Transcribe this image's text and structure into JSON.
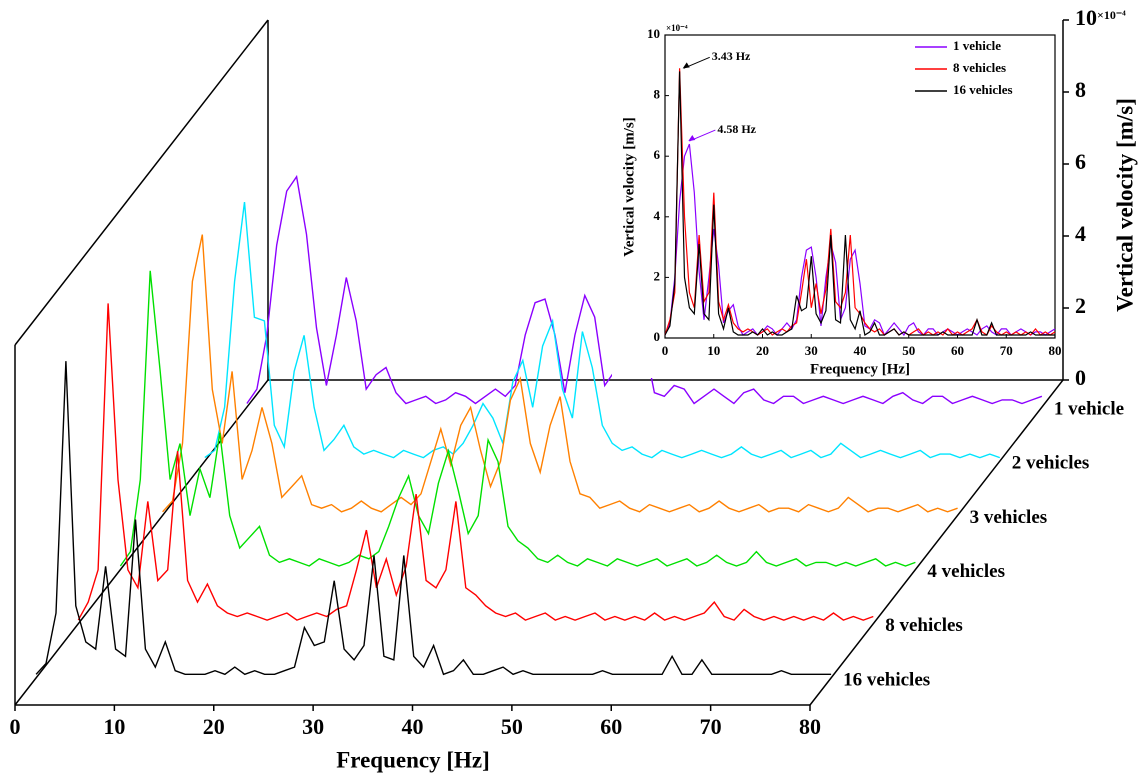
{
  "chart_data": [
    {
      "type": "waterfall",
      "xlabel": "Frequency [Hz]",
      "zlabel": "Vertical velocity [m/s]",
      "z_multiplier": "×10⁻⁴",
      "xlim": [
        0,
        80
      ],
      "xticks": [
        0,
        10,
        20,
        30,
        40,
        50,
        60,
        70,
        80
      ],
      "zlim": [
        0,
        10
      ],
      "zticks": [
        0,
        2,
        4,
        6,
        8,
        10
      ],
      "x": [
        0,
        1,
        2,
        3,
        4,
        5,
        6,
        7,
        8,
        9,
        10,
        11,
        12,
        13,
        14,
        15,
        16,
        17,
        18,
        19,
        20,
        21,
        22,
        23,
        24,
        25,
        26,
        27,
        28,
        29,
        30,
        31,
        32,
        33,
        34,
        35,
        36,
        37,
        38,
        39,
        40,
        41,
        42,
        43,
        44,
        45,
        46,
        47,
        48,
        49,
        50,
        51,
        52,
        53,
        54,
        55,
        56,
        57,
        58,
        59,
        60,
        61,
        62,
        63,
        64,
        65,
        66,
        67,
        68,
        69,
        70,
        71,
        72,
        73,
        74,
        75,
        76,
        77,
        78,
        79,
        80
      ],
      "series": [
        {
          "name": "1 vehicle",
          "color": "#8b00ff",
          "values": [
            0.1,
            0.5,
            2.0,
            4.5,
            6.0,
            6.4,
            4.8,
            2.2,
            0.6,
            2.0,
            3.6,
            2.4,
            0.5,
            0.9,
            1.1,
            0.4,
            0.1,
            0.2,
            0.3,
            0.1,
            0.2,
            0.4,
            0.3,
            0.1,
            0.3,
            0.5,
            0.3,
            0.6,
            2.0,
            2.9,
            3.0,
            2.0,
            0.4,
            2.0,
            3.1,
            2.5,
            0.6,
            1.0,
            2.6,
            2.9,
            1.8,
            0.4,
            0.3,
            0.6,
            0.5,
            0.1,
            0.3,
            0.5,
            0.3,
            0.1,
            0.4,
            0.5,
            0.2,
            0.1,
            0.3,
            0.3,
            0.1,
            0.2,
            0.3,
            0.2,
            0.1,
            0.2,
            0.3,
            0.2,
            0.1,
            0.3,
            0.4,
            0.2,
            0.1,
            0.3,
            0.3,
            0.1,
            0.2,
            0.3,
            0.2,
            0.1,
            0.2,
            0.2,
            0.1,
            0.2,
            0.3
          ]
        },
        {
          "name": "2 vehicles",
          "color": "#00e5ff",
          "values": [
            0.1,
            0.3,
            1.5,
            5.0,
            7.2,
            4.0,
            3.9,
            1.0,
            0.4,
            2.5,
            3.5,
            1.5,
            0.3,
            0.6,
            1.0,
            0.4,
            0.2,
            0.3,
            0.2,
            0.1,
            0.3,
            0.2,
            0.1,
            0.3,
            0.4,
            0.2,
            0.5,
            1.0,
            1.6,
            1.2,
            0.5,
            2.2,
            2.8,
            1.5,
            3.2,
            3.9,
            2.0,
            1.2,
            3.6,
            2.6,
            1.0,
            0.5,
            0.3,
            0.4,
            0.2,
            0.1,
            0.3,
            0.2,
            0.1,
            0.2,
            0.3,
            0.2,
            0.1,
            0.2,
            0.4,
            0.2,
            0.1,
            0.2,
            0.3,
            0.1,
            0.2,
            0.3,
            0.1,
            0.2,
            0.5,
            0.3,
            0.1,
            0.2,
            0.3,
            0.2,
            0.1,
            0.2,
            0.3,
            0.1,
            0.2,
            0.2,
            0.1,
            0.2,
            0.1,
            0.2,
            0.1
          ]
        },
        {
          "name": "3 vehicles",
          "color": "#ff8000",
          "values": [
            0.1,
            0.4,
            2.0,
            6.5,
            7.8,
            3.5,
            2.0,
            4.0,
            1.0,
            1.8,
            3.0,
            2.0,
            0.5,
            0.8,
            1.1,
            0.3,
            0.2,
            0.3,
            0.1,
            0.2,
            0.4,
            0.2,
            0.1,
            0.3,
            0.5,
            0.3,
            0.6,
            1.5,
            2.4,
            1.4,
            2.5,
            3.0,
            1.8,
            0.8,
            1.5,
            3.2,
            3.8,
            2.0,
            1.2,
            2.5,
            3.3,
            1.5,
            0.6,
            0.5,
            0.2,
            0.3,
            0.4,
            0.2,
            0.1,
            0.3,
            0.2,
            0.1,
            0.2,
            0.3,
            0.1,
            0.2,
            0.4,
            0.2,
            0.1,
            0.2,
            0.3,
            0.1,
            0.2,
            0.2,
            0.1,
            0.3,
            0.2,
            0.1,
            0.2,
            0.5,
            0.3,
            0.1,
            0.2,
            0.2,
            0.1,
            0.2,
            0.3,
            0.1,
            0.2,
            0.1,
            0.2
          ]
        },
        {
          "name": "4 vehicles",
          "color": "#00e000",
          "values": [
            0.1,
            0.5,
            2.5,
            8.3,
            5.5,
            2.5,
            3.5,
            1.5,
            2.8,
            2.0,
            3.8,
            1.5,
            0.6,
            0.9,
            1.2,
            0.4,
            0.2,
            0.3,
            0.2,
            0.1,
            0.3,
            0.2,
            0.1,
            0.2,
            0.4,
            0.3,
            0.5,
            1.2,
            2.0,
            2.6,
            1.5,
            1.0,
            2.4,
            3.3,
            2.2,
            1.0,
            1.5,
            3.6,
            3.0,
            1.2,
            0.8,
            0.6,
            0.3,
            0.2,
            0.4,
            0.2,
            0.1,
            0.3,
            0.2,
            0.1,
            0.3,
            0.2,
            0.1,
            0.2,
            0.3,
            0.1,
            0.2,
            0.3,
            0.1,
            0.2,
            0.4,
            0.2,
            0.1,
            0.2,
            0.5,
            0.2,
            0.1,
            0.2,
            0.3,
            0.1,
            0.2,
            0.2,
            0.1,
            0.2,
            0.1,
            0.2,
            0.3,
            0.1,
            0.2,
            0.1,
            0.2
          ]
        },
        {
          "name": "8 vehicles",
          "color": "#ff0000",
          "values": [
            0.1,
            0.6,
            1.5,
            8.9,
            4.0,
            1.5,
            1.0,
            3.4,
            1.2,
            1.5,
            4.8,
            1.2,
            0.6,
            1.1,
            0.5,
            0.3,
            0.2,
            0.3,
            0.2,
            0.1,
            0.2,
            0.3,
            0.1,
            0.2,
            0.3,
            0.2,
            0.4,
            0.5,
            1.5,
            2.6,
            1.0,
            1.8,
            0.8,
            1.6,
            3.6,
            1.2,
            1.0,
            1.5,
            3.4,
            1.0,
            0.8,
            0.5,
            0.3,
            0.2,
            0.3,
            0.1,
            0.2,
            0.3,
            0.1,
            0.2,
            0.1,
            0.2,
            0.3,
            0.1,
            0.2,
            0.1,
            0.2,
            0.1,
            0.3,
            0.1,
            0.2,
            0.1,
            0.2,
            0.3,
            0.6,
            0.2,
            0.1,
            0.4,
            0.2,
            0.1,
            0.2,
            0.1,
            0.2,
            0.1,
            0.2,
            0.1,
            0.3,
            0.1,
            0.2,
            0.1,
            0.2
          ]
        },
        {
          "name": "16 vehicles",
          "color": "#000000",
          "values": [
            0.1,
            0.4,
            1.8,
            8.8,
            2.0,
            1.0,
            0.8,
            3.1,
            0.8,
            0.6,
            4.4,
            0.8,
            0.3,
            1.0,
            0.2,
            0.1,
            0.1,
            0.1,
            0.2,
            0.1,
            0.3,
            0.1,
            0.2,
            0.1,
            0.1,
            0.2,
            0.3,
            1.4,
            0.9,
            1.0,
            2.7,
            0.8,
            0.5,
            0.9,
            3.4,
            0.6,
            0.5,
            3.4,
            0.6,
            0.3,
            0.9,
            0.1,
            0.2,
            0.5,
            0.1,
            0.1,
            0.2,
            0.3,
            0.1,
            0.2,
            0.1,
            0.1,
            0.1,
            0.1,
            0.1,
            0.1,
            0.1,
            0.2,
            0.1,
            0.1,
            0.1,
            0.1,
            0.1,
            0.1,
            0.6,
            0.1,
            0.1,
            0.5,
            0.1,
            0.1,
            0.1,
            0.1,
            0.1,
            0.1,
            0.1,
            0.2,
            0.1,
            0.1,
            0.1,
            0.1,
            0.1
          ]
        }
      ]
    },
    {
      "type": "line",
      "xlabel": "Frequency [Hz]",
      "ylabel": "Vertical velocity [m/s]",
      "y_multiplier": "×10⁻⁴",
      "legend": "upper right",
      "xlim": [
        0,
        80
      ],
      "xticks": [
        0,
        10,
        20,
        30,
        40,
        50,
        60,
        70,
        80
      ],
      "ylim": [
        0,
        10
      ],
      "yticks": [
        0,
        2,
        4,
        6,
        8,
        10
      ],
      "x": [
        0,
        1,
        2,
        3,
        4,
        5,
        6,
        7,
        8,
        9,
        10,
        11,
        12,
        13,
        14,
        15,
        16,
        17,
        18,
        19,
        20,
        21,
        22,
        23,
        24,
        25,
        26,
        27,
        28,
        29,
        30,
        31,
        32,
        33,
        34,
        35,
        36,
        37,
        38,
        39,
        40,
        41,
        42,
        43,
        44,
        45,
        46,
        47,
        48,
        49,
        50,
        51,
        52,
        53,
        54,
        55,
        56,
        57,
        58,
        59,
        60,
        61,
        62,
        63,
        64,
        65,
        66,
        67,
        68,
        69,
        70,
        71,
        72,
        73,
        74,
        75,
        76,
        77,
        78,
        79,
        80
      ],
      "series": [
        {
          "name": "1 vehicle",
          "color": "#8b00ff",
          "values": [
            0.1,
            0.5,
            2.0,
            4.5,
            6.0,
            6.4,
            4.8,
            2.2,
            0.6,
            2.0,
            3.6,
            2.4,
            0.5,
            0.9,
            1.1,
            0.4,
            0.1,
            0.2,
            0.3,
            0.1,
            0.2,
            0.4,
            0.3,
            0.1,
            0.3,
            0.5,
            0.3,
            0.6,
            2.0,
            2.9,
            3.0,
            2.0,
            0.4,
            2.0,
            3.1,
            2.5,
            0.6,
            1.0,
            2.6,
            2.9,
            1.8,
            0.4,
            0.3,
            0.6,
            0.5,
            0.1,
            0.3,
            0.5,
            0.3,
            0.1,
            0.4,
            0.5,
            0.2,
            0.1,
            0.3,
            0.3,
            0.1,
            0.2,
            0.3,
            0.2,
            0.1,
            0.2,
            0.3,
            0.2,
            0.1,
            0.3,
            0.4,
            0.2,
            0.1,
            0.3,
            0.3,
            0.1,
            0.2,
            0.3,
            0.2,
            0.1,
            0.2,
            0.2,
            0.1,
            0.2,
            0.3
          ]
        },
        {
          "name": "8 vehicles",
          "color": "#ff0000",
          "values": [
            0.1,
            0.6,
            1.5,
            8.9,
            4.0,
            1.5,
            1.0,
            3.4,
            1.2,
            1.5,
            4.8,
            1.2,
            0.6,
            1.1,
            0.5,
            0.3,
            0.2,
            0.3,
            0.2,
            0.1,
            0.2,
            0.3,
            0.1,
            0.2,
            0.3,
            0.2,
            0.4,
            0.5,
            1.5,
            2.6,
            1.0,
            1.8,
            0.8,
            1.6,
            3.6,
            1.2,
            1.0,
            1.5,
            3.4,
            1.0,
            0.8,
            0.5,
            0.3,
            0.2,
            0.3,
            0.1,
            0.2,
            0.3,
            0.1,
            0.2,
            0.1,
            0.2,
            0.3,
            0.1,
            0.2,
            0.1,
            0.2,
            0.1,
            0.3,
            0.1,
            0.2,
            0.1,
            0.2,
            0.3,
            0.6,
            0.2,
            0.1,
            0.4,
            0.2,
            0.1,
            0.2,
            0.1,
            0.2,
            0.1,
            0.2,
            0.1,
            0.3,
            0.1,
            0.2,
            0.1,
            0.2
          ]
        },
        {
          "name": "16 vehicles",
          "color": "#000000",
          "values": [
            0.1,
            0.4,
            1.8,
            8.8,
            2.0,
            1.0,
            0.8,
            3.1,
            0.8,
            0.6,
            4.4,
            0.8,
            0.3,
            1.0,
            0.2,
            0.1,
            0.1,
            0.1,
            0.2,
            0.1,
            0.3,
            0.1,
            0.2,
            0.1,
            0.1,
            0.2,
            0.3,
            1.4,
            0.9,
            1.0,
            2.7,
            0.8,
            0.5,
            0.9,
            3.4,
            0.6,
            0.5,
            3.4,
            0.6,
            0.3,
            0.9,
            0.1,
            0.2,
            0.5,
            0.1,
            0.1,
            0.2,
            0.3,
            0.1,
            0.2,
            0.1,
            0.1,
            0.1,
            0.1,
            0.1,
            0.1,
            0.1,
            0.2,
            0.1,
            0.1,
            0.1,
            0.1,
            0.1,
            0.1,
            0.6,
            0.1,
            0.1,
            0.5,
            0.1,
            0.1,
            0.1,
            0.1,
            0.1,
            0.1,
            0.1,
            0.2,
            0.1,
            0.1,
            0.1,
            0.1,
            0.1
          ]
        }
      ],
      "annotations": [
        {
          "text": "3.43 Hz",
          "x": 3.43,
          "y": 8.9,
          "color": "#000000"
        },
        {
          "text": "4.58 Hz",
          "x": 4.58,
          "y": 6.5,
          "color": "#8b00ff"
        }
      ]
    }
  ]
}
